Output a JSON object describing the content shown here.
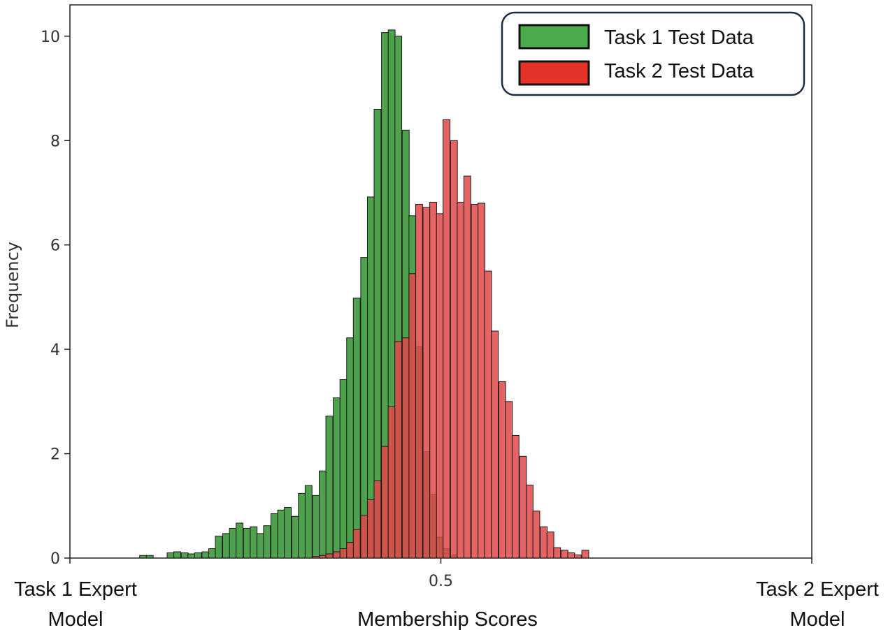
{
  "chart_data": {
    "type": "bar",
    "subtype": "histogram",
    "xlabel": "Membership Scores",
    "ylabel": "Frequency",
    "xlim": [
      0,
      1
    ],
    "ylim": [
      0,
      10.6
    ],
    "x_ticks": [
      {
        "value": 0,
        "label": ""
      },
      {
        "value": 0.5,
        "label": "0.5"
      },
      {
        "value": 1,
        "label": ""
      }
    ],
    "y_ticks": [
      0,
      2,
      4,
      6,
      8,
      10
    ],
    "x_end_labels": {
      "left": [
        "Task 1 Expert",
        "Model"
      ],
      "right": [
        "Task 2 Expert",
        "Model"
      ]
    },
    "bin_width": 0.0093,
    "legend": {
      "position": "top-right"
    },
    "series": [
      {
        "name": "Task 1 Test Data",
        "color": "#3f9a3f",
        "legend_color": "#4cab4c",
        "bins": [
          [
            0.094,
            0.05
          ],
          [
            0.103,
            0.05
          ],
          [
            0.131,
            0.1
          ],
          [
            0.14,
            0.12
          ],
          [
            0.15,
            0.1
          ],
          [
            0.159,
            0.08
          ],
          [
            0.168,
            0.1
          ],
          [
            0.178,
            0.12
          ],
          [
            0.187,
            0.18
          ],
          [
            0.196,
            0.42
          ],
          [
            0.206,
            0.47
          ],
          [
            0.215,
            0.57
          ],
          [
            0.224,
            0.67
          ],
          [
            0.234,
            0.57
          ],
          [
            0.243,
            0.6
          ],
          [
            0.252,
            0.47
          ],
          [
            0.261,
            0.62
          ],
          [
            0.271,
            0.85
          ],
          [
            0.28,
            0.92
          ],
          [
            0.289,
            0.97
          ],
          [
            0.299,
            0.8
          ],
          [
            0.308,
            1.24
          ],
          [
            0.317,
            1.39
          ],
          [
            0.327,
            1.2
          ],
          [
            0.336,
            1.67
          ],
          [
            0.345,
            2.72
          ],
          [
            0.355,
            3.07
          ],
          [
            0.364,
            3.42
          ],
          [
            0.373,
            4.22
          ],
          [
            0.382,
            4.98
          ],
          [
            0.392,
            5.76
          ],
          [
            0.401,
            6.92
          ],
          [
            0.41,
            8.6
          ],
          [
            0.42,
            10.07
          ],
          [
            0.429,
            10.12
          ],
          [
            0.438,
            10.0
          ],
          [
            0.448,
            8.2
          ],
          [
            0.457,
            6.56
          ],
          [
            0.466,
            4.05
          ],
          [
            0.476,
            2.04
          ],
          [
            0.485,
            1.22
          ],
          [
            0.494,
            0.4
          ],
          [
            0.503,
            0.18
          ],
          [
            0.513,
            0.06
          ]
        ]
      },
      {
        "name": "Task 2 Test Data",
        "color": "#e04848",
        "legend_color": "#e53228",
        "bins": [
          [
            0.327,
            0.03
          ],
          [
            0.336,
            0.05
          ],
          [
            0.345,
            0.08
          ],
          [
            0.355,
            0.12
          ],
          [
            0.364,
            0.18
          ],
          [
            0.373,
            0.3
          ],
          [
            0.382,
            0.55
          ],
          [
            0.392,
            0.82
          ],
          [
            0.401,
            1.12
          ],
          [
            0.41,
            1.48
          ],
          [
            0.42,
            2.14
          ],
          [
            0.429,
            2.9
          ],
          [
            0.438,
            4.15
          ],
          [
            0.448,
            4.22
          ],
          [
            0.457,
            5.45
          ],
          [
            0.466,
            6.78
          ],
          [
            0.476,
            6.72
          ],
          [
            0.485,
            6.82
          ],
          [
            0.494,
            6.6
          ],
          [
            0.503,
            8.4
          ],
          [
            0.513,
            8.0
          ],
          [
            0.522,
            6.82
          ],
          [
            0.531,
            7.32
          ],
          [
            0.541,
            6.78
          ],
          [
            0.55,
            6.8
          ],
          [
            0.559,
            5.5
          ],
          [
            0.568,
            4.35
          ],
          [
            0.578,
            3.38
          ],
          [
            0.587,
            3.0
          ],
          [
            0.596,
            2.35
          ],
          [
            0.606,
            1.95
          ],
          [
            0.615,
            1.4
          ],
          [
            0.624,
            0.9
          ],
          [
            0.634,
            0.6
          ],
          [
            0.643,
            0.5
          ],
          [
            0.652,
            0.2
          ],
          [
            0.662,
            0.15
          ],
          [
            0.671,
            0.1
          ],
          [
            0.68,
            0.06
          ],
          [
            0.69,
            0.15
          ]
        ]
      }
    ]
  }
}
